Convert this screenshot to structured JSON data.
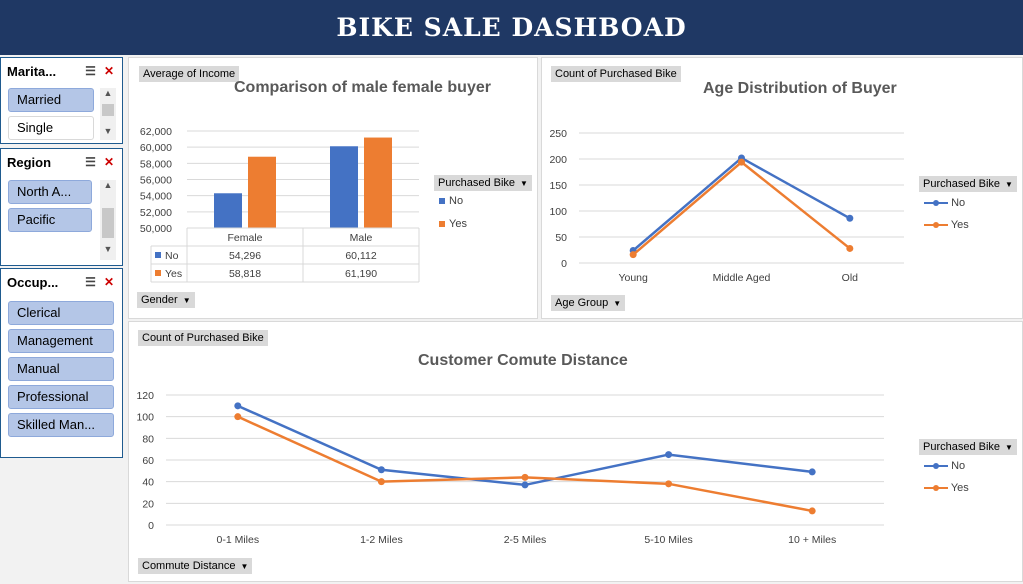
{
  "header": {
    "title": "BIKE SALE DASHBOAD"
  },
  "slicers": {
    "marital": {
      "title": "Marita...",
      "items": [
        {
          "label": "Married",
          "selected": true
        },
        {
          "label": "Single",
          "selected": false
        }
      ]
    },
    "region": {
      "title": "Region",
      "items": [
        {
          "label": "North A...",
          "selected": true
        },
        {
          "label": "Pacific",
          "selected": true
        }
      ]
    },
    "occupation": {
      "title": "Occup...",
      "items": [
        {
          "label": "Clerical"
        },
        {
          "label": "Management"
        },
        {
          "label": "Manual"
        },
        {
          "label": "Professional"
        },
        {
          "label": "Skilled Man..."
        }
      ]
    }
  },
  "colors": {
    "no": "#4472c4",
    "yes": "#ed7d31",
    "banner": "#1f3864",
    "slicer_item": "#b4c6e7"
  },
  "charts": {
    "income": {
      "value_tag": "Average of Income",
      "axis_tag": "Gender",
      "legend_tag": "Purchased Bike",
      "title": "Comparison of male female buyer"
    },
    "age": {
      "value_tag": "Count of Purchased Bike",
      "axis_tag": "Age Group",
      "legend_tag": "Purchased Bike",
      "title": "Age Distribution of Buyer"
    },
    "commute": {
      "value_tag": "Count of Purchased Bike",
      "axis_tag": "Commute Distance",
      "legend_tag": "Purchased Bike",
      "title": "Customer Comute Distance"
    }
  },
  "chart_data": [
    {
      "type": "bar",
      "title": "Comparison of male female buyer",
      "categories": [
        "Female",
        "Male"
      ],
      "series": [
        {
          "name": "No",
          "values": [
            54296,
            60112
          ]
        },
        {
          "name": "Yes",
          "values": [
            58818,
            61190
          ]
        }
      ],
      "ylim": [
        50000,
        62000
      ],
      "yticks": [
        "62,000",
        "60,000",
        "58,000",
        "56,000",
        "54,000",
        "52,000",
        "50,000"
      ],
      "table": {
        "No": [
          "54,296",
          "60,112"
        ],
        "Yes": [
          "58,818",
          "61,190"
        ]
      },
      "legend": "right",
      "grid": true
    },
    {
      "type": "line",
      "title": "Age Distribution of Buyer",
      "categories": [
        "Young",
        "Middle Aged",
        "Old"
      ],
      "series": [
        {
          "name": "No",
          "values": [
            24,
            202,
            86
          ]
        },
        {
          "name": "Yes",
          "values": [
            16,
            194,
            28
          ]
        }
      ],
      "ylim": [
        0,
        250
      ],
      "yticks": [
        "250",
        "200",
        "150",
        "100",
        "50",
        "0"
      ],
      "legend": "right",
      "grid": true
    },
    {
      "type": "line",
      "title": "Customer Comute Distance",
      "categories": [
        "0-1 Miles",
        "1-2 Miles",
        "2-5 Miles",
        "5-10 Miles",
        "10 + Miles"
      ],
      "series": [
        {
          "name": "No",
          "values": [
            110,
            51,
            37,
            65,
            49
          ]
        },
        {
          "name": "Yes",
          "values": [
            100,
            40,
            44,
            38,
            13
          ]
        }
      ],
      "ylim": [
        0,
        120
      ],
      "yticks": [
        "120",
        "100",
        "80",
        "60",
        "40",
        "20",
        "0"
      ],
      "legend": "right",
      "grid": true
    }
  ]
}
